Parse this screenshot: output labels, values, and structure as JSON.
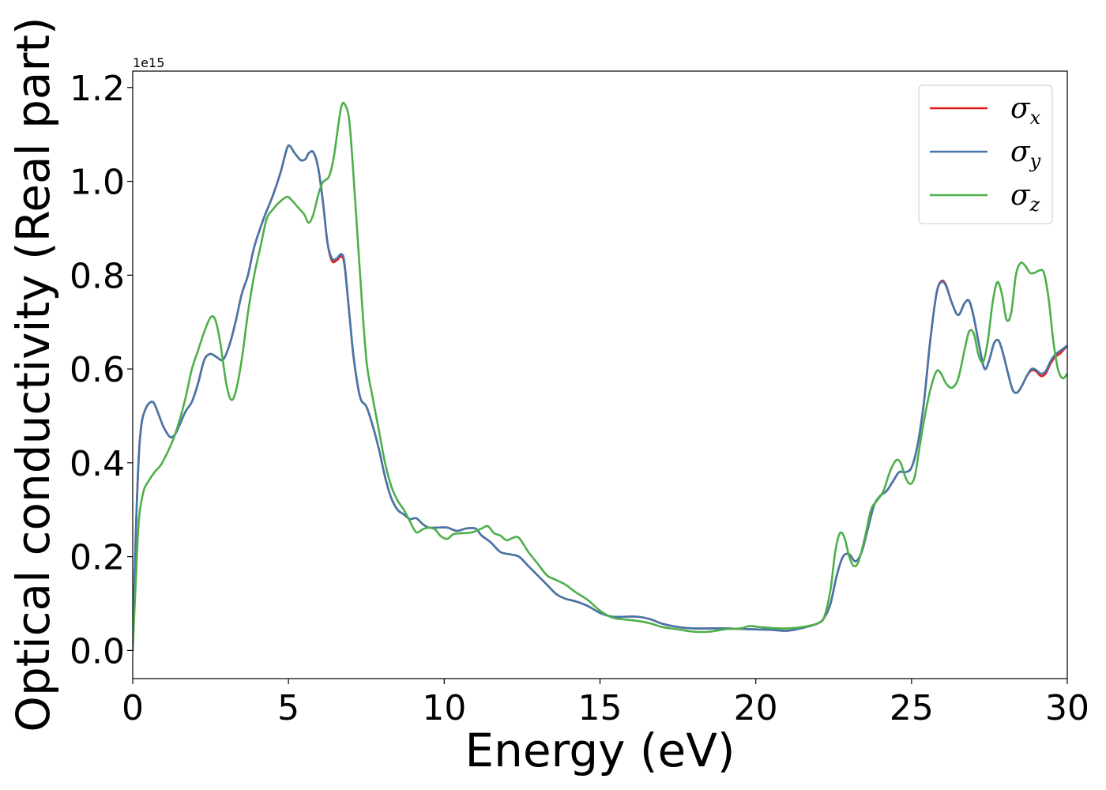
{
  "chart_data": {
    "type": "line",
    "title": "",
    "xlabel": "Energy (eV)",
    "ylabel": "Optical conductivity (Real part)",
    "y_offset_text": "1e15",
    "xlim": [
      0,
      30
    ],
    "ylim": [
      -0.06,
      1.235
    ],
    "y_scale_factor": 1000000000000000.0,
    "xticks": [
      0,
      5,
      10,
      15,
      20,
      25,
      30
    ],
    "xtick_labels": [
      "0",
      "5",
      "10",
      "15",
      "20",
      "25",
      "30"
    ],
    "yticks": [
      0.0,
      0.2,
      0.4,
      0.6,
      0.8,
      1.0,
      1.2
    ],
    "ytick_labels": [
      "0.0",
      "0.2",
      "0.4",
      "0.6",
      "0.8",
      "1.0",
      "1.2"
    ],
    "grid": false,
    "legend_position": "top-right",
    "series": [
      {
        "name": "σx",
        "legend_symbol": "σ",
        "legend_subscript": "x",
        "color": "#e41a1c",
        "x": [
          0,
          0.1,
          0.2,
          0.3,
          0.45,
          0.6,
          0.7,
          0.85,
          1.0,
          1.2,
          1.35,
          1.5,
          1.7,
          1.9,
          2.1,
          2.3,
          2.5,
          2.7,
          2.9,
          3.1,
          3.3,
          3.5,
          3.7,
          3.9,
          4.2,
          4.5,
          4.75,
          4.95,
          5.05,
          5.2,
          5.4,
          5.55,
          5.65,
          5.8,
          5.95,
          6.1,
          6.25,
          6.4,
          6.55,
          6.7,
          6.8,
          6.95,
          7.1,
          7.3,
          7.5,
          7.7,
          7.9,
          8.1,
          8.3,
          8.5,
          8.7,
          8.9,
          9.1,
          9.3,
          9.5,
          9.8,
          10.1,
          10.4,
          10.7,
          11.0,
          11.2,
          11.5,
          11.8,
          12.1,
          12.4,
          12.7,
          13.0,
          13.3,
          13.6,
          13.9,
          14.2,
          14.6,
          15.0,
          15.4,
          15.8,
          16.2,
          16.6,
          17.0,
          17.5,
          18.0,
          18.5,
          19.0,
          19.5,
          20.0,
          20.5,
          21.0,
          21.5,
          22.0,
          22.2,
          22.4,
          22.6,
          22.8,
          23.0,
          23.2,
          23.4,
          23.6,
          23.8,
          24.0,
          24.2,
          24.4,
          24.6,
          24.8,
          25.0,
          25.2,
          25.4,
          25.6,
          25.8,
          25.95,
          26.1,
          26.3,
          26.5,
          26.7,
          26.85,
          27.0,
          27.2,
          27.35,
          27.5,
          27.65,
          27.8,
          27.95,
          28.1,
          28.25,
          28.4,
          28.55,
          28.7,
          28.85,
          29.0,
          29.15,
          29.3,
          29.45,
          29.6,
          29.8,
          30.0
        ],
        "y": [
          0.0,
          0.25,
          0.42,
          0.49,
          0.52,
          0.53,
          0.525,
          0.5,
          0.475,
          0.455,
          0.46,
          0.48,
          0.51,
          0.53,
          0.57,
          0.62,
          0.632,
          0.625,
          0.62,
          0.65,
          0.7,
          0.76,
          0.8,
          0.86,
          0.92,
          0.97,
          1.02,
          1.07,
          1.075,
          1.06,
          1.045,
          1.048,
          1.06,
          1.062,
          1.03,
          0.96,
          0.87,
          0.83,
          0.832,
          0.84,
          0.82,
          0.72,
          0.62,
          0.54,
          0.52,
          0.48,
          0.43,
          0.37,
          0.325,
          0.3,
          0.29,
          0.28,
          0.282,
          0.27,
          0.262,
          0.262,
          0.262,
          0.255,
          0.26,
          0.26,
          0.245,
          0.23,
          0.21,
          0.205,
          0.2,
          0.18,
          0.16,
          0.14,
          0.12,
          0.11,
          0.105,
          0.095,
          0.08,
          0.072,
          0.072,
          0.072,
          0.067,
          0.057,
          0.05,
          0.047,
          0.047,
          0.047,
          0.046,
          0.045,
          0.044,
          0.042,
          0.048,
          0.058,
          0.07,
          0.1,
          0.16,
          0.2,
          0.205,
          0.19,
          0.21,
          0.26,
          0.31,
          0.33,
          0.34,
          0.36,
          0.38,
          0.38,
          0.39,
          0.44,
          0.53,
          0.66,
          0.76,
          0.787,
          0.78,
          0.74,
          0.715,
          0.74,
          0.745,
          0.71,
          0.64,
          0.6,
          0.62,
          0.655,
          0.66,
          0.63,
          0.59,
          0.555,
          0.55,
          0.565,
          0.585,
          0.597,
          0.595,
          0.585,
          0.59,
          0.61,
          0.625,
          0.635,
          0.65
        ]
      },
      {
        "name": "σy",
        "legend_symbol": "σ",
        "legend_subscript": "y",
        "color": "#4477aa",
        "x": [
          0,
          0.1,
          0.2,
          0.3,
          0.45,
          0.6,
          0.7,
          0.85,
          1.0,
          1.2,
          1.35,
          1.5,
          1.7,
          1.9,
          2.1,
          2.3,
          2.5,
          2.7,
          2.9,
          3.1,
          3.3,
          3.5,
          3.7,
          3.9,
          4.2,
          4.5,
          4.75,
          4.95,
          5.05,
          5.2,
          5.4,
          5.55,
          5.65,
          5.8,
          5.95,
          6.1,
          6.25,
          6.4,
          6.55,
          6.7,
          6.8,
          6.95,
          7.1,
          7.3,
          7.5,
          7.7,
          7.9,
          8.1,
          8.3,
          8.5,
          8.7,
          8.9,
          9.1,
          9.3,
          9.5,
          9.8,
          10.1,
          10.4,
          10.7,
          11.0,
          11.2,
          11.5,
          11.8,
          12.1,
          12.4,
          12.7,
          13.0,
          13.3,
          13.6,
          13.9,
          14.2,
          14.6,
          15.0,
          15.4,
          15.8,
          16.2,
          16.6,
          17.0,
          17.5,
          18.0,
          18.5,
          19.0,
          19.5,
          20.0,
          20.5,
          21.0,
          21.5,
          22.0,
          22.2,
          22.4,
          22.6,
          22.8,
          23.0,
          23.2,
          23.4,
          23.6,
          23.8,
          24.0,
          24.2,
          24.4,
          24.6,
          24.8,
          25.0,
          25.2,
          25.4,
          25.6,
          25.8,
          25.95,
          26.1,
          26.3,
          26.5,
          26.7,
          26.85,
          27.0,
          27.2,
          27.35,
          27.5,
          27.65,
          27.8,
          27.95,
          28.1,
          28.25,
          28.4,
          28.55,
          28.7,
          28.85,
          29.0,
          29.15,
          29.3,
          29.45,
          29.6,
          29.8,
          30.0
        ],
        "y": [
          0.0,
          0.25,
          0.42,
          0.49,
          0.52,
          0.53,
          0.525,
          0.5,
          0.475,
          0.455,
          0.46,
          0.48,
          0.51,
          0.53,
          0.57,
          0.62,
          0.632,
          0.625,
          0.62,
          0.65,
          0.7,
          0.76,
          0.8,
          0.86,
          0.92,
          0.97,
          1.02,
          1.07,
          1.075,
          1.06,
          1.045,
          1.048,
          1.06,
          1.062,
          1.03,
          0.96,
          0.87,
          0.835,
          0.836,
          0.845,
          0.825,
          0.72,
          0.62,
          0.54,
          0.52,
          0.48,
          0.43,
          0.37,
          0.325,
          0.3,
          0.29,
          0.28,
          0.282,
          0.27,
          0.262,
          0.262,
          0.262,
          0.255,
          0.26,
          0.26,
          0.245,
          0.23,
          0.21,
          0.205,
          0.2,
          0.18,
          0.16,
          0.14,
          0.12,
          0.11,
          0.105,
          0.095,
          0.08,
          0.072,
          0.072,
          0.072,
          0.067,
          0.057,
          0.05,
          0.047,
          0.047,
          0.047,
          0.046,
          0.045,
          0.044,
          0.042,
          0.048,
          0.058,
          0.07,
          0.1,
          0.16,
          0.2,
          0.205,
          0.19,
          0.21,
          0.26,
          0.31,
          0.33,
          0.34,
          0.36,
          0.38,
          0.38,
          0.39,
          0.44,
          0.53,
          0.66,
          0.76,
          0.785,
          0.778,
          0.74,
          0.715,
          0.74,
          0.745,
          0.71,
          0.64,
          0.6,
          0.62,
          0.655,
          0.66,
          0.63,
          0.59,
          0.555,
          0.55,
          0.565,
          0.585,
          0.6,
          0.598,
          0.59,
          0.595,
          0.615,
          0.63,
          0.64,
          0.65
        ]
      },
      {
        "name": "σz",
        "legend_symbol": "σ",
        "legend_subscript": "z",
        "color": "#4daf4a",
        "x": [
          0,
          0.1,
          0.2,
          0.35,
          0.5,
          0.7,
          0.9,
          1.1,
          1.3,
          1.5,
          1.7,
          1.9,
          2.1,
          2.3,
          2.5,
          2.65,
          2.8,
          3.0,
          3.15,
          3.3,
          3.5,
          3.7,
          3.9,
          4.1,
          4.3,
          4.5,
          4.7,
          4.95,
          5.1,
          5.3,
          5.5,
          5.65,
          5.8,
          5.95,
          6.1,
          6.3,
          6.45,
          6.6,
          6.7,
          6.8,
          6.95,
          7.1,
          7.3,
          7.5,
          7.7,
          7.9,
          8.1,
          8.3,
          8.5,
          8.7,
          8.9,
          9.1,
          9.3,
          9.5,
          9.7,
          9.9,
          10.1,
          10.3,
          10.6,
          10.9,
          11.2,
          11.4,
          11.6,
          11.8,
          12.0,
          12.2,
          12.4,
          12.7,
          13.0,
          13.3,
          13.6,
          13.9,
          14.2,
          14.6,
          15.0,
          15.4,
          15.8,
          16.2,
          16.6,
          17.0,
          17.5,
          18.0,
          18.5,
          19.0,
          19.5,
          19.8,
          20.1,
          20.5,
          21.0,
          21.5,
          22.0,
          22.2,
          22.4,
          22.55,
          22.7,
          22.85,
          23.0,
          23.15,
          23.3,
          23.5,
          23.7,
          23.9,
          24.1,
          24.3,
          24.5,
          24.65,
          24.8,
          24.95,
          25.1,
          25.25,
          25.4,
          25.6,
          25.8,
          25.95,
          26.1,
          26.3,
          26.5,
          26.7,
          26.85,
          27.0,
          27.15,
          27.3,
          27.45,
          27.6,
          27.75,
          27.9,
          28.05,
          28.2,
          28.35,
          28.5,
          28.65,
          28.8,
          28.95,
          29.1,
          29.25,
          29.4,
          29.55,
          29.7,
          29.85,
          30.0
        ],
        "y": [
          0.0,
          0.15,
          0.28,
          0.34,
          0.36,
          0.38,
          0.395,
          0.42,
          0.45,
          0.49,
          0.54,
          0.6,
          0.64,
          0.68,
          0.71,
          0.705,
          0.66,
          0.57,
          0.535,
          0.55,
          0.62,
          0.72,
          0.8,
          0.86,
          0.92,
          0.94,
          0.955,
          0.967,
          0.96,
          0.945,
          0.93,
          0.912,
          0.93,
          0.97,
          0.998,
          1.01,
          1.05,
          1.12,
          1.16,
          1.165,
          1.13,
          1.0,
          0.8,
          0.62,
          0.54,
          0.47,
          0.4,
          0.35,
          0.32,
          0.3,
          0.275,
          0.252,
          0.258,
          0.262,
          0.258,
          0.243,
          0.238,
          0.248,
          0.25,
          0.252,
          0.26,
          0.265,
          0.25,
          0.245,
          0.235,
          0.24,
          0.24,
          0.21,
          0.185,
          0.16,
          0.15,
          0.14,
          0.125,
          0.108,
          0.085,
          0.07,
          0.066,
          0.063,
          0.058,
          0.05,
          0.045,
          0.04,
          0.04,
          0.045,
          0.047,
          0.052,
          0.05,
          0.048,
          0.047,
          0.05,
          0.058,
          0.072,
          0.13,
          0.21,
          0.25,
          0.24,
          0.2,
          0.18,
          0.19,
          0.24,
          0.3,
          0.32,
          0.34,
          0.38,
          0.405,
          0.4,
          0.37,
          0.355,
          0.37,
          0.43,
          0.49,
          0.555,
          0.595,
          0.59,
          0.57,
          0.56,
          0.58,
          0.64,
          0.68,
          0.675,
          0.63,
          0.615,
          0.66,
          0.74,
          0.785,
          0.76,
          0.705,
          0.72,
          0.8,
          0.826,
          0.82,
          0.805,
          0.805,
          0.81,
          0.805,
          0.75,
          0.66,
          0.6,
          0.58,
          0.59
        ]
      }
    ]
  }
}
